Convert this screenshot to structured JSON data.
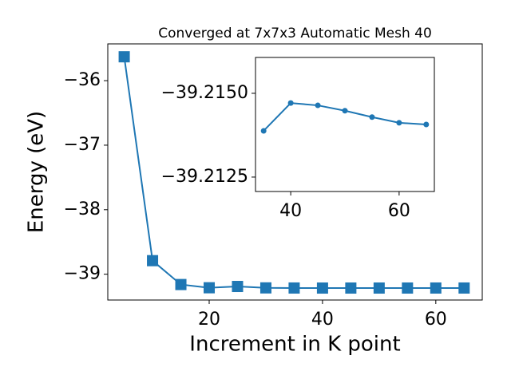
{
  "chart_data": [
    {
      "type": "line",
      "title": "Converged at 7x7x3 Automatic Mesh 40",
      "x_label": "Increment in K point",
      "y_label": "Energy (eV)",
      "x": [
        5,
        10,
        15,
        20,
        25,
        30,
        35,
        40,
        45,
        50,
        55,
        60,
        65
      ],
      "series": [
        {
          "color": "#1f77b4",
          "marker": "square",
          "values": [
            -35.63,
            -38.79,
            -39.16,
            -39.21,
            -39.19,
            -39.212,
            -39.2139,
            -39.2147,
            -39.2146,
            -39.2145,
            -39.2143,
            -39.2141,
            -39.2141
          ]
        }
      ],
      "xlim": [
        2.1,
        68.2
      ],
      "ylim": [
        -35.43,
        -39.4
      ],
      "xticks": [
        20,
        40,
        60
      ],
      "yticks": [
        {
          "value": -36,
          "label": "−36"
        },
        {
          "value": -37,
          "label": "−37"
        },
        {
          "value": -38,
          "label": "−38"
        },
        {
          "value": -39,
          "label": "−39"
        }
      ]
    },
    {
      "type": "line",
      "x": [
        35,
        40,
        45,
        50,
        55,
        60,
        65
      ],
      "series": [
        {
          "color": "#1f77b4",
          "marker": "circle",
          "values": [
            -39.21388,
            -39.21471,
            -39.21464,
            -39.21448,
            -39.21429,
            -39.21412,
            -39.21407
          ]
        }
      ],
      "xlim": [
        33.5,
        66.5
      ],
      "ylim": [
        -39.21607,
        -39.21207
      ],
      "xticks": [
        40,
        60
      ],
      "yticks": [
        {
          "value": -39.215,
          "label": "−39.2150"
        },
        {
          "value": -39.2125,
          "label": "−39.2125"
        }
      ]
    }
  ]
}
